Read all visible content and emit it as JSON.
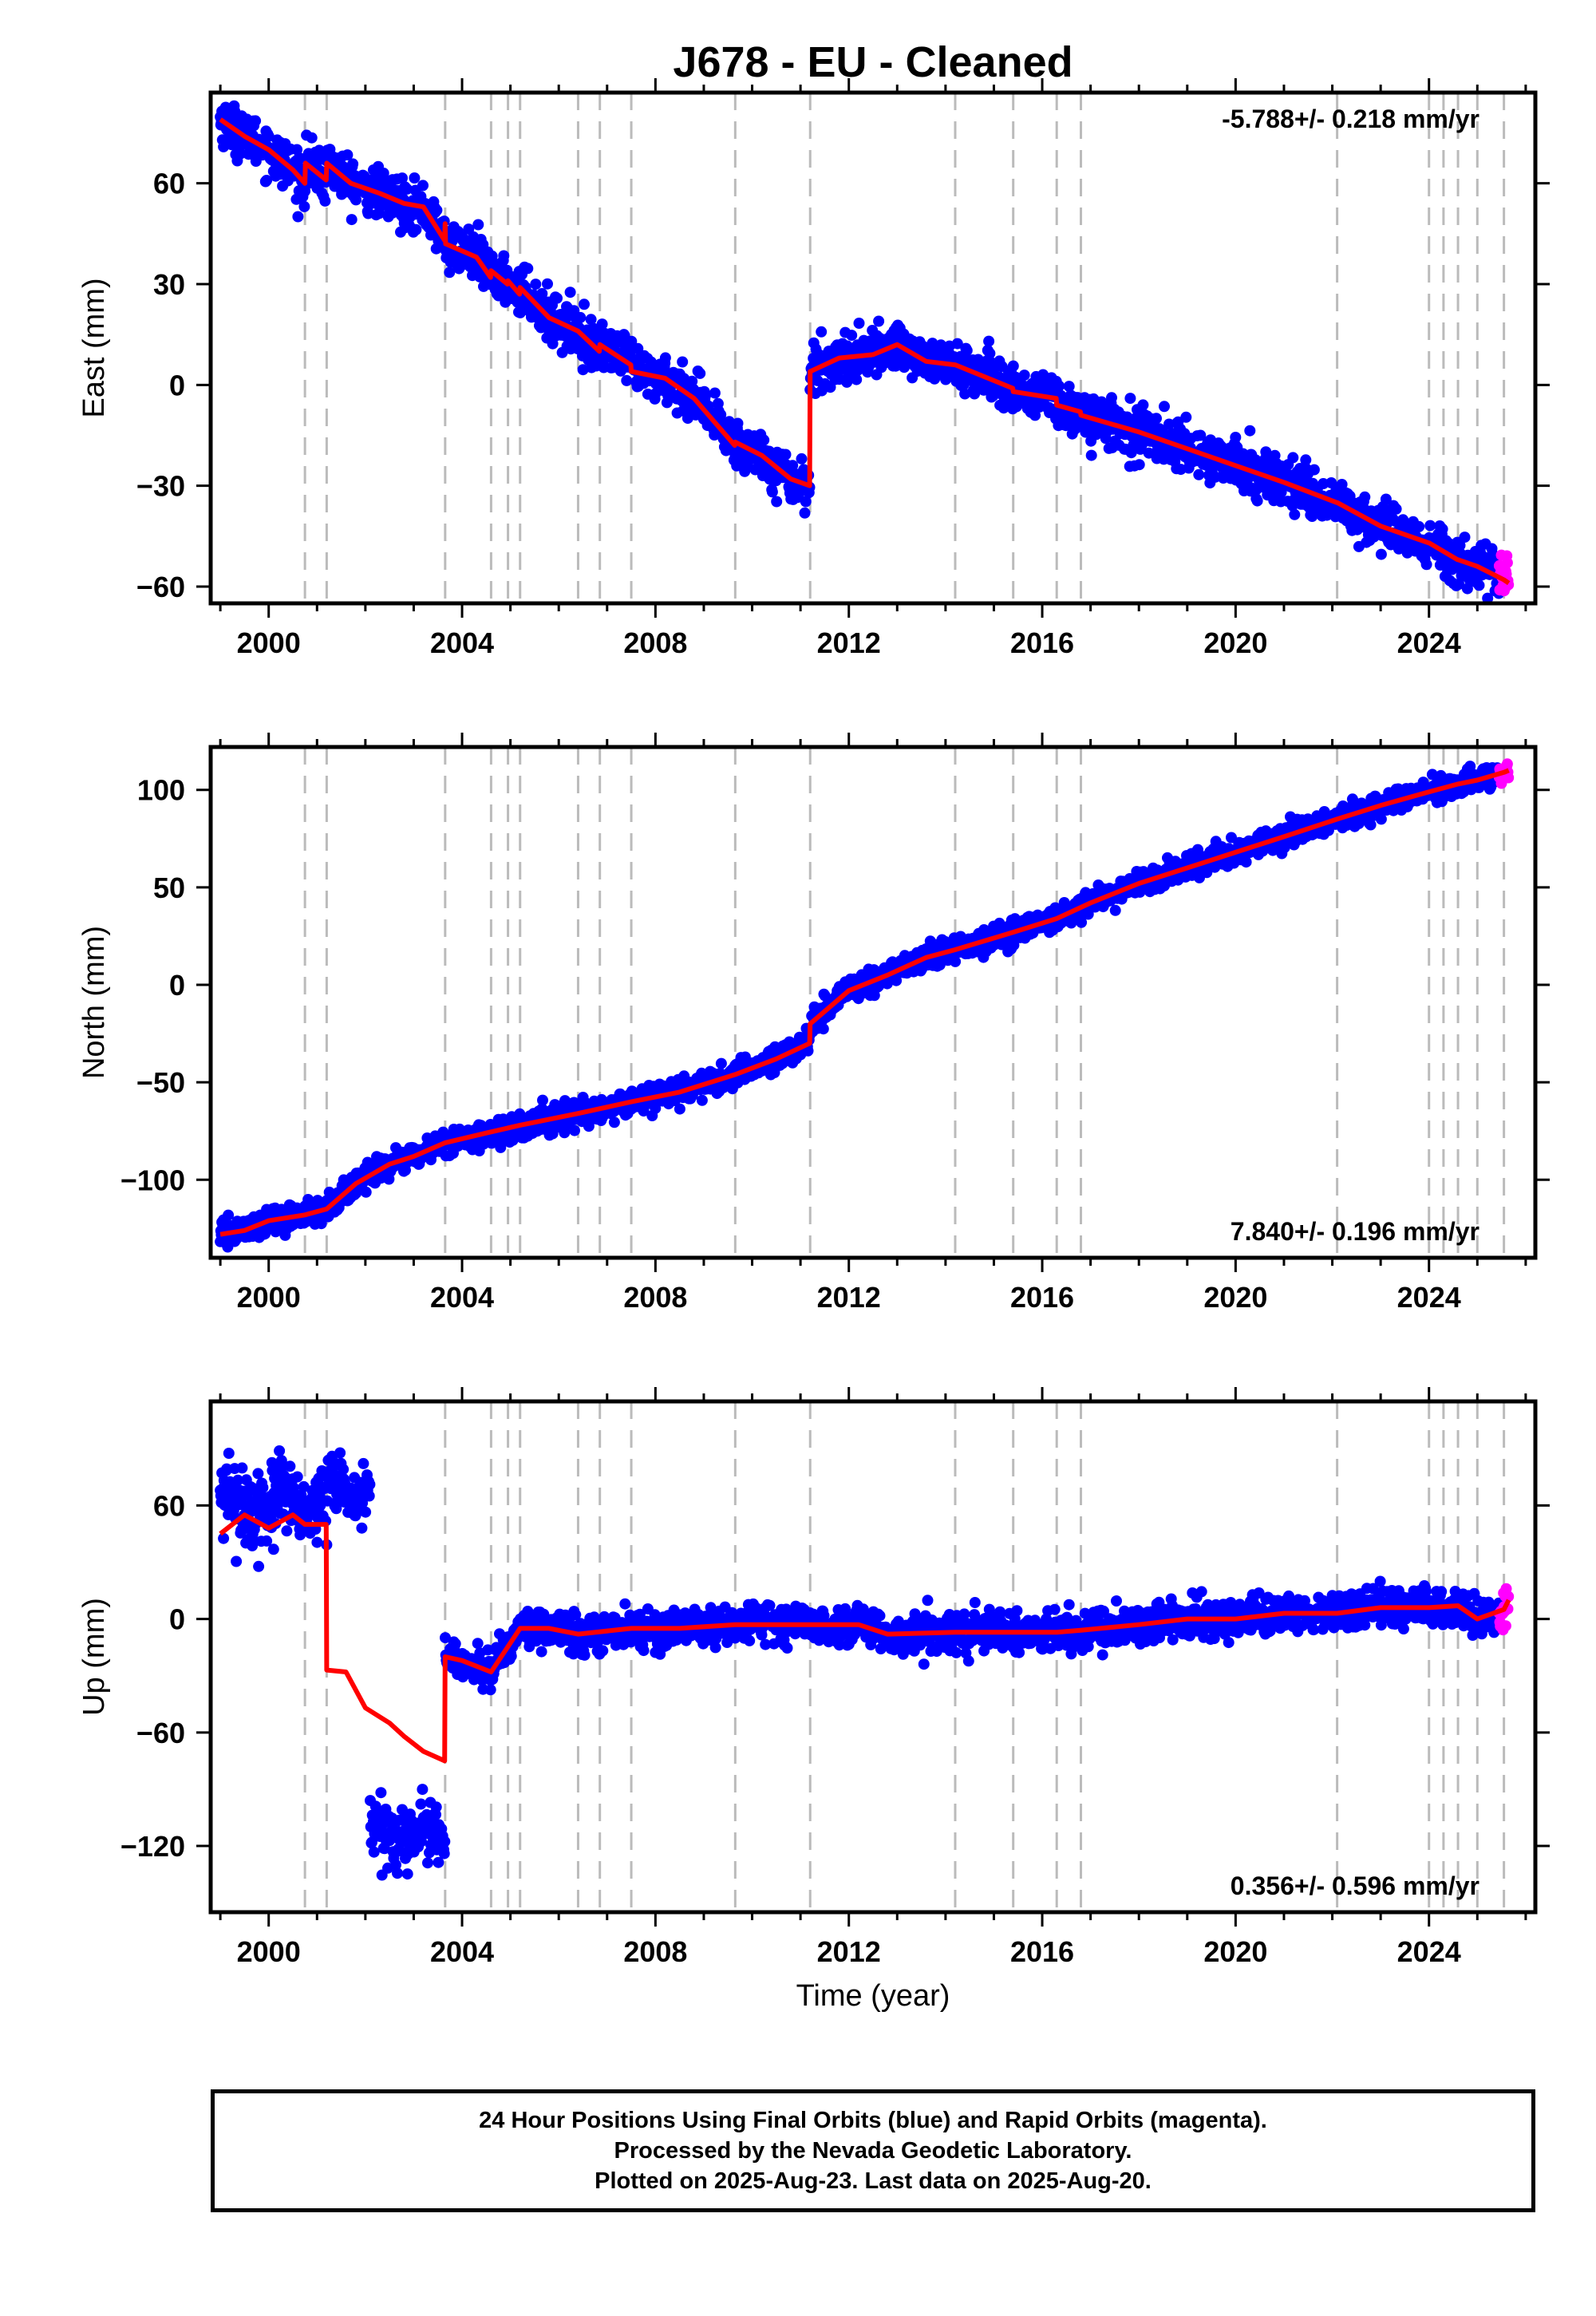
{
  "chart_data": {
    "type": "scatter",
    "title": "J678  - EU - Cleaned",
    "x_axis": {
      "label": "Time (year)",
      "range": [
        1998.8,
        2026.2
      ],
      "ticks": [
        2000,
        2004,
        2008,
        2012,
        2016,
        2020,
        2024
      ]
    },
    "colors": {
      "final_orbits": "#0000ff",
      "rapid_orbits": "#ff00ff",
      "model": "#ff0000",
      "event_lines": "#bbbbbb"
    },
    "event_lines": [
      2000.75,
      2001.2,
      2003.65,
      2004.6,
      2004.95,
      2005.2,
      2006.4,
      2006.85,
      2007.5,
      2009.65,
      2011.2,
      2014.2,
      2015.4,
      2016.3,
      2016.8,
      2022.1,
      2024.0,
      2024.3,
      2024.6,
      2025.0,
      2025.55
    ],
    "panels": [
      {
        "id": "east",
        "ylabel": "East (mm)",
        "ylim": [
          -65,
          87
        ],
        "yticks": [
          60,
          30,
          0,
          -30,
          -60
        ],
        "ytick_labels": [
          "60",
          "30",
          "0",
          "−30",
          "−60"
        ],
        "rate_label": "-5.788+/- 0.218 mm/yr",
        "rate_position": "top-right",
        "model_series": [
          [
            1999.0,
            79
          ],
          [
            1999.5,
            74
          ],
          [
            2000.0,
            70
          ],
          [
            2000.5,
            64
          ],
          [
            2000.75,
            60
          ],
          [
            2000.76,
            66
          ],
          [
            2001.19,
            61
          ],
          [
            2001.2,
            66
          ],
          [
            2001.7,
            60
          ],
          [
            2002.3,
            57
          ],
          [
            2002.8,
            54
          ],
          [
            2003.2,
            53
          ],
          [
            2003.64,
            43
          ],
          [
            2003.65,
            48
          ],
          [
            2003.66,
            42
          ],
          [
            2004.3,
            38
          ],
          [
            2004.59,
            32
          ],
          [
            2004.6,
            34
          ],
          [
            2004.94,
            30
          ],
          [
            2004.95,
            31
          ],
          [
            2005.19,
            27
          ],
          [
            2005.2,
            29
          ],
          [
            2005.8,
            20
          ],
          [
            2006.4,
            16
          ],
          [
            2006.84,
            10
          ],
          [
            2006.85,
            12
          ],
          [
            2007.49,
            6
          ],
          [
            2007.5,
            4
          ],
          [
            2008.2,
            2
          ],
          [
            2008.8,
            -4
          ],
          [
            2009.64,
            -18
          ],
          [
            2009.65,
            -17
          ],
          [
            2010.2,
            -21
          ],
          [
            2010.8,
            -28
          ],
          [
            2011.19,
            -30
          ],
          [
            2011.2,
            4
          ],
          [
            2011.8,
            8
          ],
          [
            2012.5,
            9
          ],
          [
            2013.0,
            12
          ],
          [
            2013.6,
            7
          ],
          [
            2014.19,
            6
          ],
          [
            2014.2,
            6
          ],
          [
            2015.39,
            -1
          ],
          [
            2015.4,
            -2
          ],
          [
            2016.29,
            -4
          ],
          [
            2016.3,
            -6
          ],
          [
            2016.79,
            -8
          ],
          [
            2016.8,
            -9
          ],
          [
            2018.0,
            -14
          ],
          [
            2019.0,
            -19
          ],
          [
            2020.0,
            -24
          ],
          [
            2021.0,
            -29
          ],
          [
            2022.09,
            -35
          ],
          [
            2022.1,
            -35
          ],
          [
            2023.0,
            -42
          ],
          [
            2023.99,
            -47
          ],
          [
            2024.0,
            -47
          ],
          [
            2024.59,
            -52
          ],
          [
            2024.6,
            -52
          ],
          [
            2025.0,
            -54
          ],
          [
            2025.55,
            -58
          ],
          [
            2025.65,
            -59
          ]
        ],
        "scatter_noise": 3.5,
        "seasonal_amplitude": 2.5
      },
      {
        "id": "north",
        "ylabel": "North (mm)",
        "ylim": [
          -140,
          122
        ],
        "yticks": [
          100,
          50,
          0,
          -50,
          -100
        ],
        "ytick_labels": [
          "100",
          "50",
          "0",
          "−50",
          "−100"
        ],
        "rate_label": "7.840+/- 0.196 mm/yr",
        "rate_position": "bottom-right",
        "model_series": [
          [
            1999.0,
            -128
          ],
          [
            1999.5,
            -126
          ],
          [
            2000.0,
            -121
          ],
          [
            2000.75,
            -118
          ],
          [
            2001.2,
            -115
          ],
          [
            2001.8,
            -102
          ],
          [
            2002.5,
            -92
          ],
          [
            2003.0,
            -88
          ],
          [
            2003.65,
            -81
          ],
          [
            2004.5,
            -76
          ],
          [
            2005.2,
            -72
          ],
          [
            2006.4,
            -66
          ],
          [
            2007.5,
            -60
          ],
          [
            2008.5,
            -55
          ],
          [
            2009.65,
            -46
          ],
          [
            2010.5,
            -38
          ],
          [
            2011.19,
            -30
          ],
          [
            2011.2,
            -20
          ],
          [
            2012.0,
            -3
          ],
          [
            2012.8,
            5
          ],
          [
            2013.6,
            14
          ],
          [
            2014.2,
            18
          ],
          [
            2015.4,
            27
          ],
          [
            2016.3,
            34
          ],
          [
            2017.0,
            42
          ],
          [
            2018.0,
            52
          ],
          [
            2019.0,
            60
          ],
          [
            2020.0,
            68
          ],
          [
            2021.0,
            76
          ],
          [
            2022.1,
            85
          ],
          [
            2023.0,
            92
          ],
          [
            2024.0,
            99
          ],
          [
            2024.6,
            103
          ],
          [
            2025.0,
            105
          ],
          [
            2025.55,
            109
          ],
          [
            2025.65,
            110
          ]
        ],
        "scatter_noise": 3.2,
        "seasonal_amplitude": 2
      },
      {
        "id": "up",
        "ylabel": "Up (mm)",
        "ylim": [
          -155,
          115
        ],
        "yticks": [
          60,
          0,
          -60,
          -120
        ],
        "ytick_labels": [
          "60",
          "0",
          "−60",
          "−120"
        ],
        "rate_label": "0.356+/- 0.596 mm/yr",
        "rate_position": "bottom-right",
        "model_series": [
          [
            1999.0,
            45
          ],
          [
            1999.5,
            55
          ],
          [
            2000.0,
            48
          ],
          [
            2000.5,
            55
          ],
          [
            2000.75,
            50
          ],
          [
            2001.19,
            50
          ],
          [
            2001.2,
            -27
          ],
          [
            2001.6,
            -28
          ],
          [
            2002.0,
            -47
          ],
          [
            2002.5,
            -55
          ],
          [
            2002.8,
            -62
          ],
          [
            2003.2,
            -70
          ],
          [
            2003.64,
            -75
          ],
          [
            2003.65,
            -20
          ],
          [
            2004.0,
            -22
          ],
          [
            2004.6,
            -28
          ],
          [
            2005.2,
            -5
          ],
          [
            2005.8,
            -5
          ],
          [
            2006.4,
            -8
          ],
          [
            2007.5,
            -5
          ],
          [
            2008.5,
            -5
          ],
          [
            2009.65,
            -3
          ],
          [
            2011.2,
            -3
          ],
          [
            2012.2,
            -3
          ],
          [
            2012.8,
            -8
          ],
          [
            2014.2,
            -7
          ],
          [
            2016.3,
            -7
          ],
          [
            2016.8,
            -6
          ],
          [
            2018.0,
            -3
          ],
          [
            2019.0,
            0
          ],
          [
            2020.0,
            0
          ],
          [
            2021.0,
            3
          ],
          [
            2022.1,
            3
          ],
          [
            2023.0,
            6
          ],
          [
            2024.0,
            6
          ],
          [
            2024.6,
            7
          ],
          [
            2025.0,
            0
          ],
          [
            2025.55,
            5
          ],
          [
            2025.65,
            10
          ]
        ],
        "scatter_noise": 5,
        "seasonal_amplitude": 6,
        "scatter_clusters": [
          {
            "x_range": [
              1999.0,
              2001.2
            ],
            "y_center": 60,
            "spread": 18
          },
          {
            "x_range": [
              2001.2,
              2002.1
            ],
            "y_center": 68,
            "spread": 14
          },
          {
            "x_range": [
              2002.05,
              2003.65
            ],
            "y_center": -115,
            "spread": 13
          }
        ]
      }
    ]
  },
  "footer": {
    "lines": [
      "24 Hour Positions Using Final Orbits (blue) and Rapid Orbits (magenta).",
      "Processed by the Nevada Geodetic Laboratory.",
      "Plotted on 2025-Aug-23. Last data on 2025-Aug-20."
    ]
  }
}
